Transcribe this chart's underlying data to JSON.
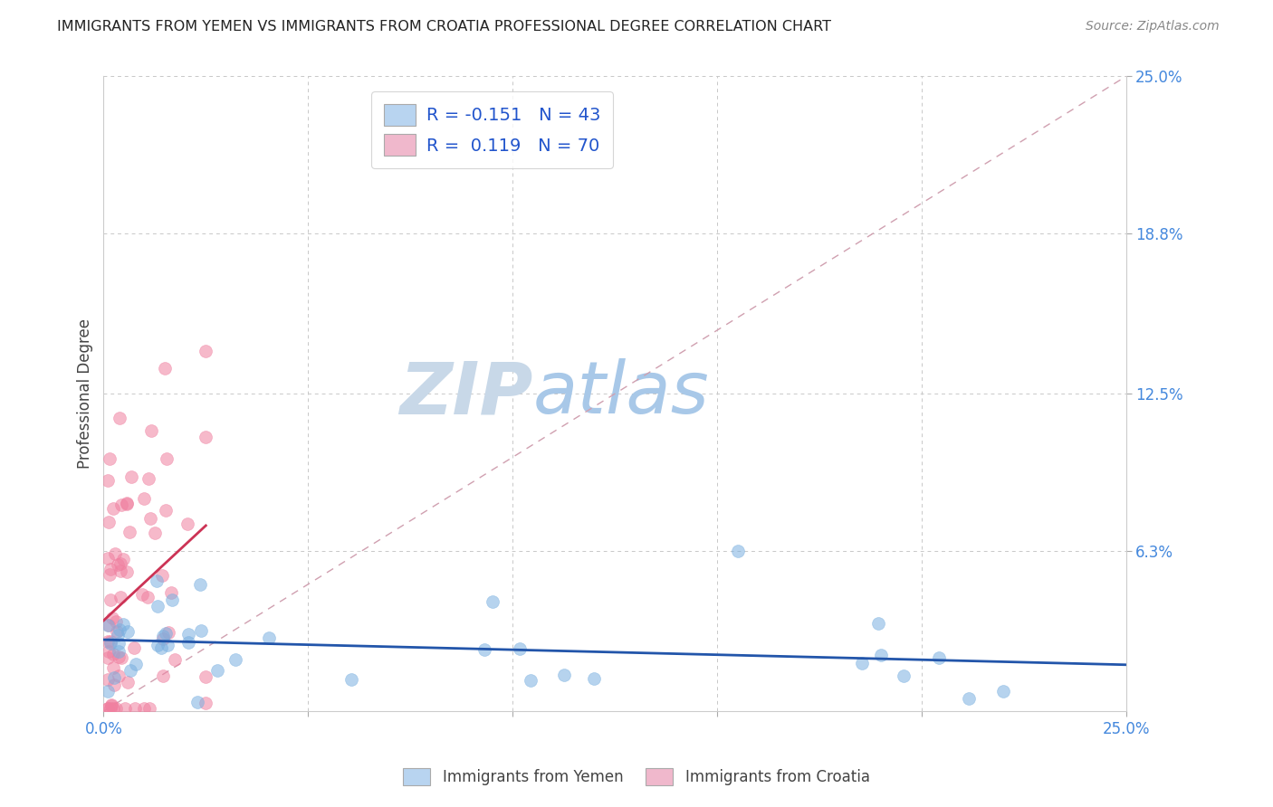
{
  "title": "IMMIGRANTS FROM YEMEN VS IMMIGRANTS FROM CROATIA PROFESSIONAL DEGREE CORRELATION CHART",
  "source": "Source: ZipAtlas.com",
  "ylabel": "Professional Degree",
  "xlim": [
    0.0,
    0.25
  ],
  "ylim": [
    0.0,
    0.25
  ],
  "ytick_labels_right": [
    "25.0%",
    "18.8%",
    "12.5%",
    "6.3%"
  ],
  "ytick_values_right": [
    0.25,
    0.188,
    0.125,
    0.063
  ],
  "grid_color": "#c8c8c8",
  "background_color": "#ffffff",
  "watermark_zip": "ZIP",
  "watermark_atlas": "atlas",
  "watermark_color_zip": "#c8d8e8",
  "watermark_color_atlas": "#a8c8e8",
  "legend_label_1": "R = -0.151   N = 43",
  "legend_label_2": "R =  0.119   N = 70",
  "series1_color": "#7ab0e0",
  "series2_color": "#f080a0",
  "trendline1_color": "#2255aa",
  "trendline2_color": "#cc3355",
  "diagonal_color": "#d0a0b0",
  "legend_box_color_1": "#b8d4f0",
  "legend_box_color_2": "#f0b8cc",
  "right_axis_label_color": "#4488dd",
  "bottom_legend_label1": "Immigrants from Yemen",
  "bottom_legend_label2": "Immigrants from Croatia",
  "series1_seed": 101,
  "series2_seed": 202
}
